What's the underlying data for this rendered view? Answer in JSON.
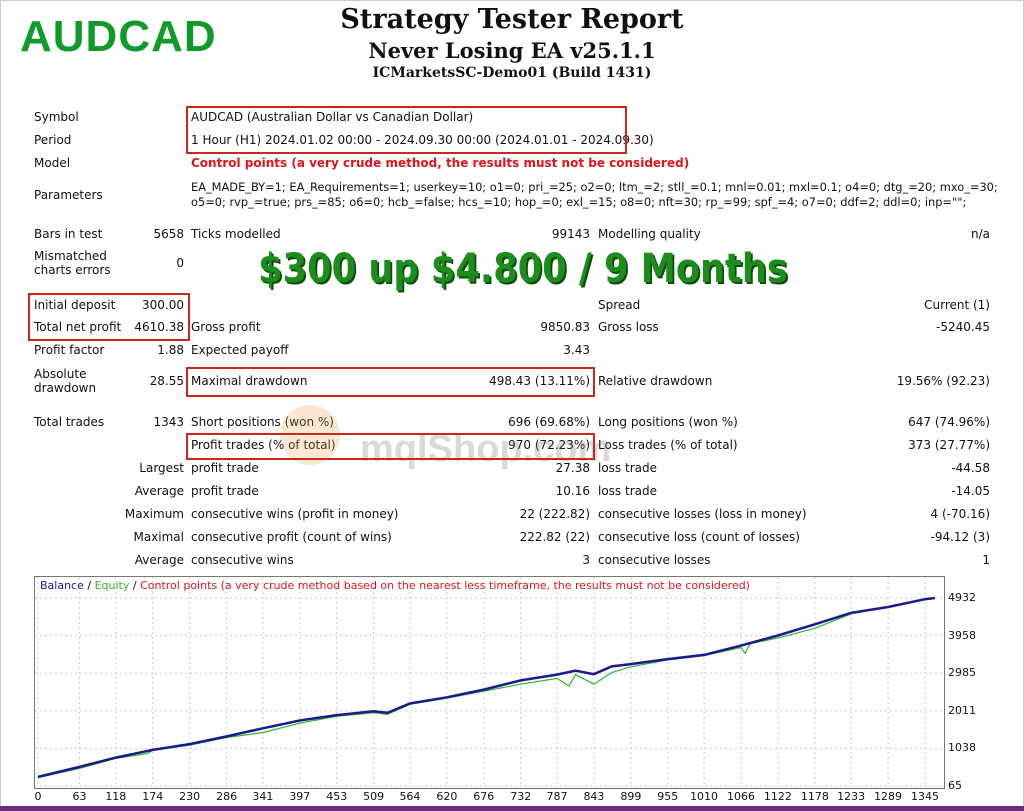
{
  "brand": "AUDCAD",
  "header": {
    "title": "Strategy Tester Report",
    "subtitle": "Never Losing EA v25.1.1",
    "server": "ICMarketsSC-Demo01 (Build 1431)"
  },
  "headline": "$300 up $4.800 / 9 Months",
  "watermark": "mqlShop.com",
  "info": {
    "symbol_label": "Symbol",
    "symbol": "AUDCAD (Australian Dollar vs Canadian Dollar)",
    "period_label": "Period",
    "period": "1 Hour (H1) 2024.01.02 00:00 - 2024.09.30 00:00 (2024.01.01 - 2024.09.30)",
    "model_label": "Model",
    "model": "Control points (a very crude method, the results must not be considered)",
    "parameters_label": "Parameters",
    "parameters_line1": "EA_MADE_BY=1; EA_Requirements=1; userkey=10; o1=0; pri_=25; o2=0; ltm_=2; stll_=0.1; mnl=0.01; mxl=0.1; o4=0; dtg_=20; mxo_=30;",
    "parameters_line2": "o5=0; rvp_=true; prs_=85; o6=0; hcb_=false; hcs_=10; hop_=0; exl_=15; o8=0; nft=30; rp_=99; spf_=4; o7=0; ddf=2; ddl=0; inp=\"\";"
  },
  "stats": [
    [
      "Bars in test",
      "5658",
      "Ticks modelled",
      "99143",
      "Modelling quality",
      "n/a"
    ],
    [
      "Mismatched charts errors",
      "0",
      "",
      "",
      "",
      ""
    ],
    [
      "Initial deposit",
      "300.00",
      "",
      "",
      "Spread",
      "Current (1)"
    ],
    [
      "Total net profit",
      "4610.38",
      "Gross profit",
      "9850.83",
      "Gross loss",
      "-5240.45"
    ],
    [
      "Profit factor",
      "1.88",
      "Expected payoff",
      "3.43",
      "",
      ""
    ],
    [
      "Absolute drawdown",
      "28.55",
      "Maximal drawdown",
      "498.43 (13.11%)",
      "Relative drawdown",
      "19.56% (92.23)"
    ],
    [
      "Total trades",
      "1343",
      "Short positions (won %)",
      "696 (69.68%)",
      "Long positions (won %)",
      "647 (74.96%)"
    ],
    [
      "",
      "",
      "Profit trades (% of total)",
      "970 (72.23%)",
      "Loss trades (% of total)",
      "373 (27.77%)"
    ],
    [
      "",
      "Largest",
      "profit trade",
      "27.38",
      "loss trade",
      "-44.58"
    ],
    [
      "",
      "Average",
      "profit trade",
      "10.16",
      "loss trade",
      "-14.05"
    ],
    [
      "",
      "Maximum",
      "consecutive wins (profit in money)",
      "22 (222.82)",
      "consecutive losses (loss in money)",
      "4 (-70.16)"
    ],
    [
      "",
      "Maximal",
      "consecutive profit (count of wins)",
      "222.82 (22)",
      "consecutive loss (count of losses)",
      "-94.12 (3)"
    ],
    [
      "",
      "Average",
      "consecutive wins",
      "3",
      "consecutive losses",
      "1"
    ]
  ],
  "chart_data": {
    "type": "line",
    "legend": {
      "balance": "Balance",
      "sep1": " / ",
      "equity": "Equity",
      "sep2": " / ",
      "note": "Control points (a very crude method based on the nearest less timeframe, the results must not be considered)"
    },
    "legend_placement": "top-left",
    "grid": true,
    "colors": {
      "balance": "#1a1a8c",
      "equity": "#2db82d",
      "note": "#e0141e"
    },
    "xlim": [
      0,
      1360
    ],
    "ylim": [
      65,
      4932
    ],
    "x_ticks": [
      0,
      63,
      118,
      174,
      230,
      286,
      341,
      397,
      453,
      509,
      564,
      620,
      676,
      732,
      787,
      843,
      899,
      955,
      1010,
      1066,
      1122,
      1178,
      1233,
      1289,
      1345
    ],
    "y_ticks": [
      65,
      1038,
      2011,
      2985,
      3958,
      4932
    ],
    "series": [
      {
        "name": "Balance",
        "points": [
          [
            0,
            300
          ],
          [
            63,
            560
          ],
          [
            118,
            800
          ],
          [
            174,
            1000
          ],
          [
            230,
            1150
          ],
          [
            286,
            1350
          ],
          [
            341,
            1560
          ],
          [
            397,
            1760
          ],
          [
            453,
            1900
          ],
          [
            509,
            2000
          ],
          [
            530,
            1960
          ],
          [
            564,
            2200
          ],
          [
            620,
            2360
          ],
          [
            676,
            2560
          ],
          [
            732,
            2800
          ],
          [
            787,
            2950
          ],
          [
            815,
            3050
          ],
          [
            843,
            2960
          ],
          [
            870,
            3160
          ],
          [
            899,
            3220
          ],
          [
            955,
            3350
          ],
          [
            1010,
            3460
          ],
          [
            1066,
            3700
          ],
          [
            1122,
            3960
          ],
          [
            1178,
            4250
          ],
          [
            1233,
            4550
          ],
          [
            1289,
            4700
          ],
          [
            1345,
            4900
          ],
          [
            1360,
            4932
          ]
        ]
      },
      {
        "name": "Equity",
        "points": [
          [
            0,
            280
          ],
          [
            63,
            520
          ],
          [
            118,
            780
          ],
          [
            165,
            900
          ],
          [
            174,
            990
          ],
          [
            230,
            1120
          ],
          [
            286,
            1320
          ],
          [
            341,
            1450
          ],
          [
            397,
            1690
          ],
          [
            453,
            1870
          ],
          [
            509,
            1960
          ],
          [
            530,
            1920
          ],
          [
            564,
            2180
          ],
          [
            620,
            2340
          ],
          [
            676,
            2520
          ],
          [
            732,
            2700
          ],
          [
            787,
            2850
          ],
          [
            805,
            2650
          ],
          [
            815,
            2950
          ],
          [
            843,
            2700
          ],
          [
            870,
            3000
          ],
          [
            899,
            3150
          ],
          [
            955,
            3330
          ],
          [
            1010,
            3440
          ],
          [
            1066,
            3650
          ],
          [
            1072,
            3500
          ],
          [
            1080,
            3750
          ],
          [
            1122,
            3900
          ],
          [
            1150,
            4020
          ],
          [
            1178,
            4150
          ],
          [
            1233,
            4520
          ],
          [
            1289,
            4690
          ],
          [
            1345,
            4890
          ],
          [
            1360,
            4920
          ]
        ]
      }
    ]
  }
}
